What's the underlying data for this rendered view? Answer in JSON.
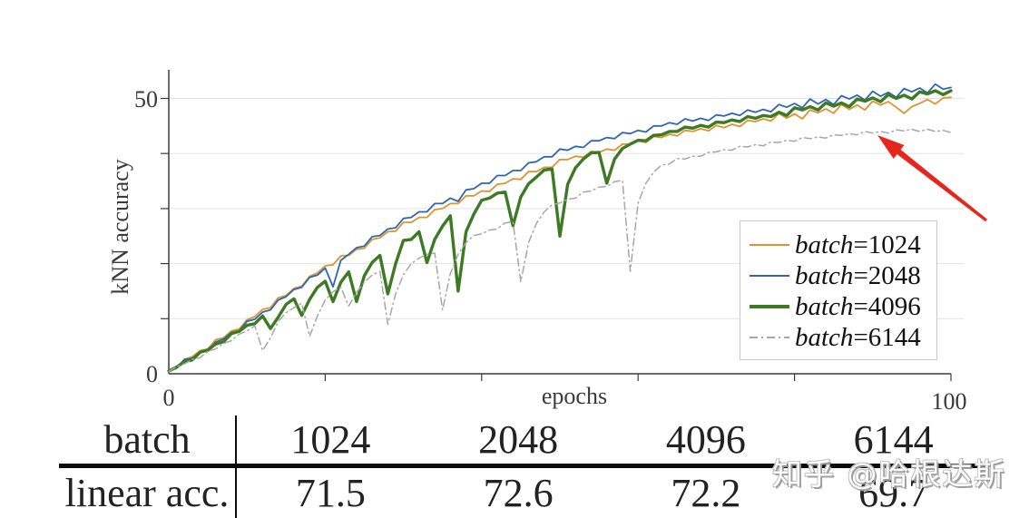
{
  "chart": {
    "ylabel": "kNN accuracy",
    "xlabel": "epochs",
    "y_tick_labels": {
      "zero": "0",
      "fifty": "50"
    },
    "x_tick_labels": {
      "zero": "0",
      "hundred": "100"
    },
    "colors": {
      "axis": "#3a3a3a",
      "grid": "#e3e3e3",
      "arrow": "#e6251c",
      "legend_border": "#c9c9c9"
    }
  },
  "chart_data": {
    "type": "line",
    "title": "",
    "xlabel": "epochs",
    "ylabel": "kNN accuracy",
    "xlim": [
      0,
      100
    ],
    "ylim": [
      0,
      55
    ],
    "x_start": 0,
    "x_step": 1,
    "grid": "horizontal gridlines every 10 (10-50), only 0 and 50 labeled on y; x ticks every 20, only 0 and 100 labeled",
    "legend_position": "lower right",
    "series": [
      {
        "name": "batch=1024",
        "legend_var": "batch",
        "legend_rest": "=1024",
        "color": "#dd9430",
        "width": 1.8,
        "dash": "",
        "values": [
          0.5,
          1.0,
          2.6,
          3.1,
          4.2,
          4.5,
          6.2,
          6.5,
          7.8,
          8.1,
          9.8,
          10.4,
          11.7,
          12.0,
          13.8,
          14.2,
          15.5,
          15.9,
          17.7,
          18.3,
          19.6,
          19.8,
          21.4,
          21.5,
          22.6,
          22.8,
          24.4,
          24.7,
          25.8,
          25.9,
          27.5,
          27.5,
          28.4,
          28.4,
          29.8,
          30.0,
          30.9,
          30.9,
          32.3,
          32.3,
          33.2,
          33.1,
          34.4,
          34.6,
          35.4,
          35.3,
          36.7,
          36.7,
          37.5,
          37.5,
          38.9,
          38.9,
          39.5,
          39.3,
          40.4,
          40.2,
          40.8,
          40.6,
          41.7,
          41.7,
          42.3,
          42.0,
          43.1,
          42.9,
          43.5,
          43.2,
          44.2,
          44.0,
          44.5,
          44.1,
          45.1,
          44.7,
          45.3,
          44.9,
          46.0,
          45.8,
          46.3,
          45.9,
          47.3,
          46.4,
          47.2,
          46.3,
          47.9,
          47.4,
          48.1,
          47.3,
          48.9,
          48.0,
          48.8,
          47.9,
          49.5,
          48.8,
          49.4,
          48.4,
          47.3,
          48.5,
          49.1,
          49.8,
          49.0,
          50.1,
          50.2
        ]
      },
      {
        "name": "batch=2048",
        "legend_var": "batch",
        "legend_rest": "=2048",
        "color": "#2e66b0",
        "width": 1.8,
        "dash": "",
        "values": [
          0.5,
          1.0,
          2.6,
          2.8,
          3.9,
          4.1,
          5.8,
          6.3,
          7.5,
          7.8,
          9.5,
          9.9,
          11.2,
          11.6,
          13.4,
          14.0,
          15.3,
          15.7,
          17.5,
          17.9,
          19.2,
          15.8,
          20.6,
          21.7,
          22.9,
          23.2,
          24.9,
          25.1,
          26.3,
          26.5,
          28.2,
          28.4,
          29.4,
          29.4,
          30.9,
          30.9,
          31.9,
          31.3,
          33.4,
          33.6,
          34.6,
          34.6,
          36.0,
          36.0,
          36.9,
          36.9,
          38.3,
          38.5,
          39.4,
          39.4,
          40.8,
          40.6,
          41.3,
          41.1,
          42.3,
          42.3,
          42.9,
          42.7,
          43.8,
          43.6,
          44.2,
          43.9,
          45.0,
          45.0,
          45.6,
          45.3,
          46.3,
          45.9,
          46.4,
          46.0,
          47.0,
          46.8,
          47.3,
          46.9,
          47.9,
          47.5,
          48.0,
          47.6,
          48.9,
          48.4,
          49.1,
          48.3,
          49.9,
          49.0,
          49.8,
          48.9,
          50.5,
          49.9,
          50.6,
          49.7,
          51.3,
          50.4,
          51.1,
          50.2,
          51.8,
          51.2,
          51.9,
          51.0,
          52.6,
          51.7,
          52.0
        ]
      },
      {
        "name": "batch=4096",
        "legend_var": "batch",
        "legend_rest": "=4096",
        "color": "#3d7a23",
        "width": 3.4,
        "dash": "",
        "values": [
          0.5,
          1.2,
          2.2,
          2.5,
          3.9,
          4.3,
          5.4,
          5.8,
          7.3,
          7.7,
          8.8,
          9.1,
          10.5,
          8.2,
          10.3,
          12.6,
          13.6,
          10.6,
          13.5,
          15.7,
          16.8,
          13.1,
          16.6,
          18.5,
          13.1,
          17.8,
          20.2,
          21.5,
          14.5,
          20.0,
          24.2,
          24.4,
          25.8,
          20.2,
          24.4,
          26.8,
          28.7,
          15.0,
          25.8,
          29.0,
          31.5,
          31.9,
          32.8,
          33.0,
          26.9,
          32.1,
          34.5,
          35.7,
          37.0,
          37.2,
          25.0,
          34.4,
          37.4,
          39.0,
          40.1,
          40.2,
          34.6,
          39.0,
          40.9,
          41.7,
          42.4,
          42.3,
          43.3,
          43.4,
          44.0,
          44.0,
          44.8,
          44.6,
          45.1,
          44.8,
          45.7,
          45.6,
          46.1,
          45.8,
          46.7,
          46.4,
          46.9,
          46.7,
          47.5,
          46.9,
          48.3,
          47.9,
          48.5,
          47.9,
          49.2,
          48.6,
          49.2,
          48.5,
          49.9,
          49.5,
          50.1,
          49.4,
          50.7,
          50.0,
          50.6,
          49.9,
          51.2,
          50.8,
          51.4,
          50.7,
          51.4
        ]
      },
      {
        "name": "batch=6144",
        "legend_var": "batch",
        "legend_rest": "=6144",
        "color": "#a6a6a6",
        "width": 1.5,
        "dash": "8 4 1.5 4",
        "values": [
          0.4,
          1.3,
          1.8,
          2.6,
          2.9,
          4.1,
          4.5,
          5.5,
          6.0,
          7.2,
          7.8,
          8.7,
          4.2,
          6.5,
          9.5,
          11.1,
          12.0,
          12.8,
          6.8,
          10.5,
          13.4,
          14.9,
          15.7,
          12.3,
          14.8,
          16.6,
          17.9,
          18.6,
          9.0,
          14.5,
          18.0,
          20.0,
          21.0,
          21.7,
          21.9,
          11.6,
          18.2,
          21.7,
          23.8,
          25.1,
          25.4,
          26.1,
          26.3,
          27.4,
          27.6,
          16.7,
          23.8,
          27.3,
          29.4,
          30.7,
          31.0,
          31.7,
          31.9,
          33.0,
          33.2,
          33.9,
          34.0,
          34.9,
          35.1,
          18.6,
          31.0,
          34.6,
          36.6,
          37.9,
          38.1,
          39.1,
          39.0,
          39.5,
          39.5,
          40.2,
          40.3,
          40.7,
          40.6,
          41.3,
          41.2,
          41.6,
          41.4,
          42.1,
          42.0,
          42.4,
          42.2,
          42.9,
          42.7,
          43.0,
          42.8,
          43.4,
          43.3,
          43.6,
          43.4,
          44.0,
          43.7,
          44.0,
          43.7,
          44.3,
          44.1,
          44.4,
          44.0,
          44.4,
          44.0,
          44.2,
          43.8
        ]
      }
    ],
    "annotation": {
      "type": "arrow",
      "color": "#e6251c",
      "description": "red arrow pointing at the end of the batch=6144 curve"
    }
  },
  "table": {
    "header_row": [
      "batch",
      "1024",
      "2048",
      "4096",
      "6144"
    ],
    "data_row": [
      "linear acc.",
      "71.5",
      "72.6",
      "72.2",
      "69.7"
    ]
  },
  "watermark": {
    "text": "知乎 @哈根达斯"
  }
}
